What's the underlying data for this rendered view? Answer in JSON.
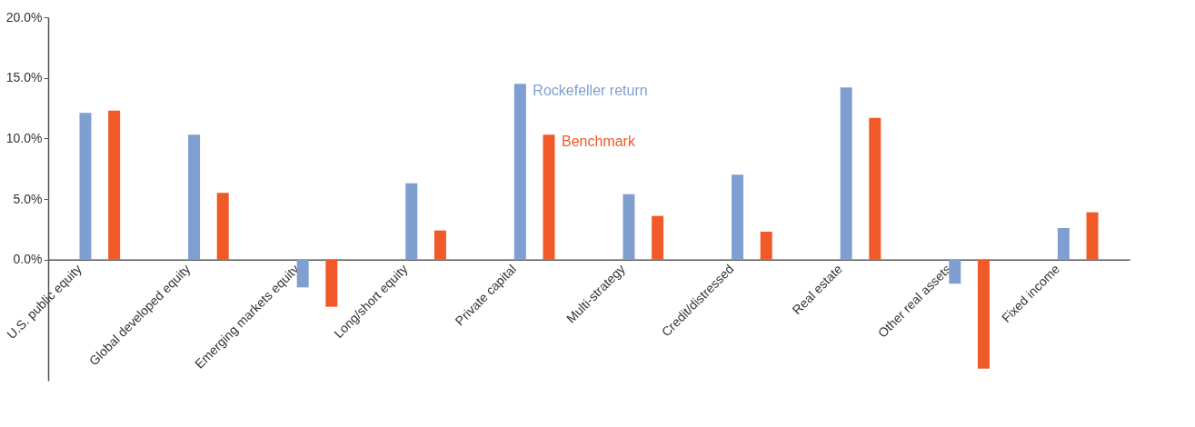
{
  "chart_data": {
    "type": "bar",
    "categories": [
      "U.S. public equity",
      "Global developed equity",
      "Emerging markets equity",
      "Long/short equity",
      "Private capital",
      "Multi-strategy",
      "Credit/distressed",
      "Real estate",
      "Other real assets",
      "Fixed income"
    ],
    "series": [
      {
        "name": "Rockefeller return",
        "color": "#7f9fd1",
        "values": [
          12.1,
          10.3,
          -2.3,
          6.3,
          14.5,
          5.4,
          7.0,
          14.2,
          -2.0,
          2.6
        ]
      },
      {
        "name": "Benchmark",
        "color": "#f05a28",
        "values": [
          12.3,
          5.5,
          -3.9,
          2.4,
          10.3,
          3.6,
          2.3,
          11.7,
          -9.0,
          3.9
        ]
      }
    ],
    "ylim": [
      -10,
      20
    ],
    "yticks": [
      {
        "value": 0,
        "label": "0.0%"
      },
      {
        "value": 5,
        "label": "5.0%"
      },
      {
        "value": 10,
        "label": "10.0%"
      },
      {
        "value": 15,
        "label": "15.0%"
      },
      {
        "value": 20,
        "label": "20.0%"
      }
    ],
    "grid": false,
    "legend": false
  }
}
